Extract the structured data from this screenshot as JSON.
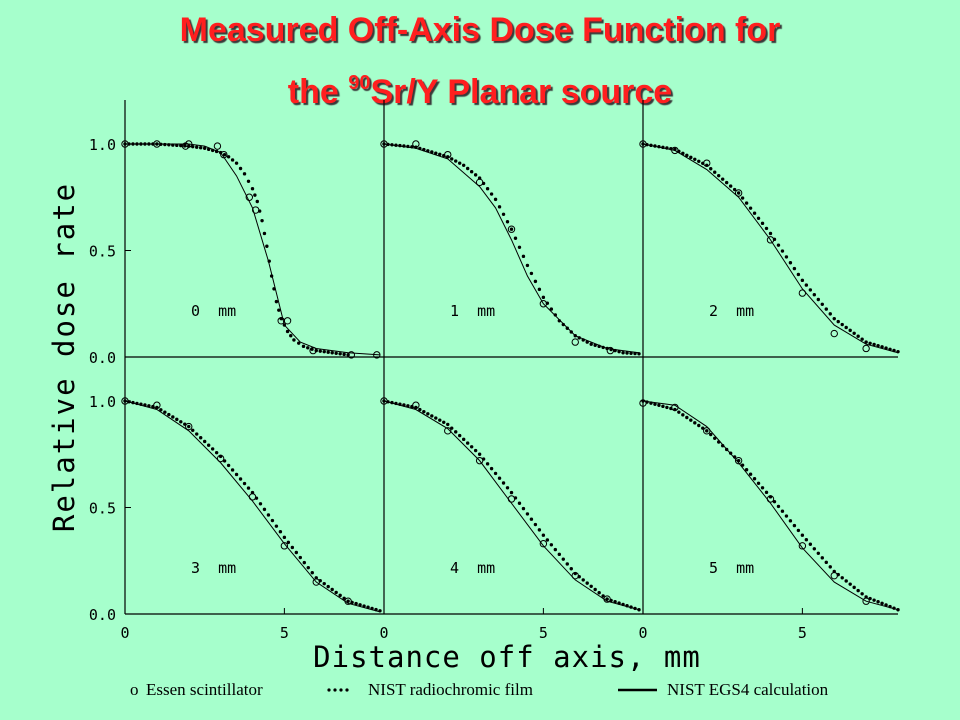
{
  "title": {
    "line1": "Measured Off-Axis Dose Function for",
    "line2_prefix": "the ",
    "line2_sup": "90",
    "line2_suffix": "Sr/Y Planar source"
  },
  "legend": {
    "essen": "Essen scintillator",
    "film": "NIST radiochromic film",
    "egs4": "NIST EGS4 calculation",
    "essen_marker": "o"
  },
  "chart_data": {
    "type": "scatter",
    "xlabel": "Distance off axis, mm",
    "ylabel": "Relative dose rate",
    "xlim": [
      0,
      8
    ],
    "ylim": [
      0,
      1.1
    ],
    "xticks": [
      "0",
      "5",
      "0",
      "5",
      "0",
      "5"
    ],
    "yticks_top": [
      "1.0",
      "0.5",
      "0.0"
    ],
    "yticks_bottom": [
      "1.0",
      "0.5",
      "0.0"
    ],
    "panels": [
      {
        "label": "0  mm",
        "egs4": {
          "x": [
            0,
            1,
            2,
            2.5,
            3,
            3.5,
            4,
            4.5,
            5,
            5.5,
            6,
            7,
            8
          ],
          "y": [
            1.0,
            1.0,
            1.0,
            0.99,
            0.96,
            0.85,
            0.7,
            0.45,
            0.15,
            0.07,
            0.04,
            0.02,
            0.01
          ]
        },
        "film": {
          "x": [
            0,
            0.5,
            1,
            1.5,
            2,
            2.5,
            3,
            3.25,
            3.5,
            3.75,
            4,
            4.15,
            4.3,
            4.45,
            4.6,
            4.75,
            4.9,
            5.1,
            5.3,
            5.6,
            6,
            6.5,
            7
          ],
          "y": [
            1.0,
            1.0,
            1.0,
            0.995,
            0.99,
            0.98,
            0.96,
            0.94,
            0.91,
            0.86,
            0.79,
            0.73,
            0.64,
            0.52,
            0.38,
            0.26,
            0.18,
            0.12,
            0.08,
            0.05,
            0.03,
            0.02,
            0.01
          ]
        },
        "essen": {
          "x": [
            0,
            1,
            1.9,
            2,
            2.9,
            3.1,
            3.9,
            4.1,
            4.9,
            5.1,
            5.9,
            7.1,
            7.9
          ],
          "y": [
            1.0,
            1.0,
            0.99,
            1.0,
            0.99,
            0.95,
            0.75,
            0.69,
            0.17,
            0.17,
            0.03,
            0.01,
            0.01
          ]
        }
      },
      {
        "label": "1  mm",
        "egs4": {
          "x": [
            0,
            1,
            2,
            3,
            3.5,
            4,
            4.5,
            5,
            6,
            7,
            8
          ],
          "y": [
            1.0,
            0.98,
            0.93,
            0.8,
            0.7,
            0.55,
            0.38,
            0.25,
            0.1,
            0.04,
            0.02
          ]
        },
        "film": {
          "x": [
            0,
            1,
            2,
            2.5,
            3,
            3.5,
            4,
            4.5,
            5,
            5.5,
            6,
            6.5,
            7,
            7.5,
            8
          ],
          "y": [
            1.0,
            0.985,
            0.94,
            0.9,
            0.84,
            0.74,
            0.6,
            0.43,
            0.28,
            0.17,
            0.1,
            0.06,
            0.04,
            0.02,
            0.015
          ]
        },
        "essen": {
          "x": [
            0,
            1,
            2,
            3,
            4,
            5,
            6,
            7.1
          ],
          "y": [
            1.0,
            1.0,
            0.95,
            0.82,
            0.6,
            0.25,
            0.07,
            0.03
          ]
        }
      },
      {
        "label": "2  mm",
        "egs4": {
          "x": [
            0,
            1,
            2,
            3,
            4,
            5,
            6,
            7,
            8
          ],
          "y": [
            1.0,
            0.97,
            0.88,
            0.75,
            0.55,
            0.32,
            0.15,
            0.06,
            0.02
          ]
        },
        "film": {
          "x": [
            0,
            1,
            2,
            3,
            4,
            5,
            6,
            7,
            8
          ],
          "y": [
            1.0,
            0.975,
            0.9,
            0.77,
            0.58,
            0.36,
            0.18,
            0.07,
            0.025
          ]
        },
        "essen": {
          "x": [
            0,
            1,
            2,
            3,
            4,
            5,
            6,
            7
          ],
          "y": [
            1.0,
            0.97,
            0.91,
            0.77,
            0.55,
            0.3,
            0.11,
            0.04
          ]
        }
      },
      {
        "label": "3  mm",
        "egs4": {
          "x": [
            0,
            1,
            2,
            3,
            4,
            5,
            6,
            7,
            8
          ],
          "y": [
            1.0,
            0.96,
            0.86,
            0.71,
            0.53,
            0.33,
            0.15,
            0.05,
            0.01
          ]
        },
        "film": {
          "x": [
            0,
            1,
            2,
            3,
            4,
            5,
            6,
            7,
            8
          ],
          "y": [
            1.0,
            0.97,
            0.88,
            0.74,
            0.57,
            0.36,
            0.17,
            0.06,
            0.015
          ]
        },
        "essen": {
          "x": [
            0,
            1,
            2,
            3,
            4,
            5,
            6,
            7
          ],
          "y": [
            1.0,
            0.98,
            0.88,
            0.73,
            0.55,
            0.32,
            0.15,
            0.06
          ]
        }
      },
      {
        "label": "4  mm",
        "egs4": {
          "x": [
            0,
            1,
            2,
            3,
            4,
            5,
            6,
            7,
            8
          ],
          "y": [
            1.0,
            0.96,
            0.87,
            0.72,
            0.52,
            0.32,
            0.16,
            0.06,
            0.02
          ]
        },
        "film": {
          "x": [
            0,
            1,
            2,
            3,
            4,
            5,
            6,
            7,
            8
          ],
          "y": [
            1.0,
            0.97,
            0.89,
            0.75,
            0.57,
            0.37,
            0.19,
            0.07,
            0.02
          ]
        },
        "essen": {
          "x": [
            0,
            1,
            2,
            3,
            4,
            5,
            6,
            7
          ],
          "y": [
            1.0,
            0.98,
            0.86,
            0.72,
            0.54,
            0.33,
            0.18,
            0.07
          ]
        }
      },
      {
        "label": "5  mm",
        "egs4": {
          "x": [
            0,
            1,
            2,
            3,
            4,
            5,
            6,
            7,
            8
          ],
          "y": [
            1.0,
            0.98,
            0.88,
            0.71,
            0.52,
            0.31,
            0.15,
            0.06,
            0.02
          ]
        },
        "film": {
          "x": [
            0,
            1,
            2,
            3,
            4,
            5,
            6,
            7,
            8
          ],
          "y": [
            1.0,
            0.96,
            0.86,
            0.72,
            0.55,
            0.37,
            0.2,
            0.08,
            0.02
          ]
        },
        "essen": {
          "x": [
            0,
            1,
            2,
            3,
            4,
            5,
            6,
            7
          ],
          "y": [
            0.99,
            0.97,
            0.86,
            0.72,
            0.54,
            0.32,
            0.18,
            0.06
          ]
        }
      }
    ]
  },
  "colors": {
    "background": "#a6ffcc",
    "title": "#ff1f1f",
    "ink": "#000000"
  }
}
